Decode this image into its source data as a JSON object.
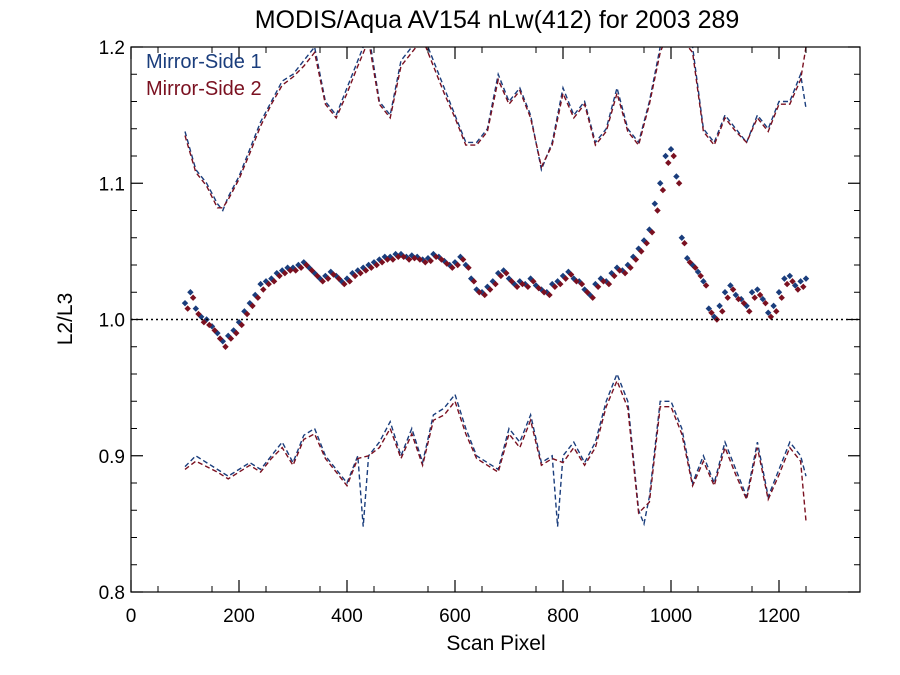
{
  "chart_data": {
    "type": "scatter",
    "title": "MODIS/Aqua AV154 nLw(412) for 2003 289",
    "xlabel": "Scan Pixel",
    "ylabel": "L2/L3",
    "xlim": [
      0,
      1350
    ],
    "ylim": [
      0.8,
      1.2
    ],
    "x_ticks": [
      0,
      200,
      400,
      600,
      800,
      1000,
      1200
    ],
    "x_tick_labels": [
      "0",
      "200",
      "400",
      "600",
      "800",
      "1000",
      "1200"
    ],
    "y_ticks": [
      0.8,
      0.9,
      1.0,
      1.1,
      1.2
    ],
    "y_tick_labels": [
      "0.8",
      "0.9",
      "1.0",
      "1.1",
      "1.2"
    ],
    "reference_line_y": 1.0,
    "grid": false,
    "legend_position": "top-left",
    "colors": {
      "side1": "#1a3d7c",
      "side2": "#7a1020",
      "axis": "#000000"
    },
    "series": [
      {
        "name": "Mirror-Side 1",
        "kind": "points",
        "color": "#1a3d7c",
        "x": [
          100,
          110,
          120,
          130,
          140,
          150,
          160,
          170,
          180,
          190,
          200,
          210,
          220,
          230,
          240,
          250,
          260,
          270,
          280,
          290,
          300,
          310,
          320,
          330,
          340,
          350,
          360,
          370,
          380,
          390,
          400,
          410,
          420,
          430,
          440,
          450,
          460,
          470,
          480,
          490,
          500,
          510,
          520,
          530,
          540,
          550,
          560,
          570,
          580,
          590,
          600,
          610,
          620,
          630,
          640,
          650,
          660,
          670,
          680,
          690,
          700,
          710,
          720,
          730,
          740,
          750,
          760,
          770,
          780,
          790,
          800,
          810,
          820,
          830,
          840,
          850,
          860,
          870,
          880,
          890,
          900,
          910,
          920,
          930,
          940,
          950,
          960,
          970,
          980,
          990,
          1000,
          1010,
          1020,
          1030,
          1040,
          1050,
          1060,
          1070,
          1080,
          1090,
          1100,
          1110,
          1120,
          1130,
          1140,
          1150,
          1160,
          1170,
          1180,
          1190,
          1200,
          1210,
          1220,
          1230,
          1240,
          1250
        ],
        "y": [
          1.012,
          1.02,
          1.008,
          1.002,
          1.0,
          0.995,
          0.99,
          0.984,
          0.988,
          0.992,
          0.998,
          1.006,
          1.012,
          1.018,
          1.026,
          1.028,
          1.03,
          1.034,
          1.036,
          1.038,
          1.038,
          1.04,
          1.042,
          1.038,
          1.034,
          1.03,
          1.032,
          1.035,
          1.032,
          1.028,
          1.03,
          1.034,
          1.036,
          1.038,
          1.04,
          1.042,
          1.044,
          1.046,
          1.046,
          1.048,
          1.048,
          1.046,
          1.047,
          1.046,
          1.044,
          1.045,
          1.048,
          1.046,
          1.043,
          1.04,
          1.042,
          1.046,
          1.04,
          1.03,
          1.022,
          1.02,
          1.024,
          1.028,
          1.034,
          1.036,
          1.03,
          1.026,
          1.028,
          1.026,
          1.03,
          1.025,
          1.022,
          1.02,
          1.026,
          1.028,
          1.032,
          1.035,
          1.03,
          1.028,
          1.022,
          1.018,
          1.026,
          1.03,
          1.028,
          1.034,
          1.038,
          1.036,
          1.04,
          1.046,
          1.052,
          1.058,
          1.066,
          1.085,
          1.1,
          1.12,
          1.125,
          1.105,
          1.06,
          1.045,
          1.04,
          1.035,
          1.028,
          1.008,
          1.002,
          1.01,
          1.02,
          1.025,
          1.018,
          1.015,
          1.01,
          1.02,
          1.022,
          1.015,
          1.005,
          1.01,
          1.02,
          1.03,
          1.032,
          1.025,
          1.028,
          1.03
        ]
      },
      {
        "name": "Mirror-Side 2",
        "kind": "points",
        "color": "#7a1020",
        "x": [
          105,
          115,
          125,
          135,
          145,
          155,
          165,
          175,
          185,
          195,
          205,
          215,
          225,
          235,
          245,
          255,
          265,
          275,
          285,
          295,
          305,
          315,
          325,
          335,
          345,
          355,
          365,
          375,
          385,
          395,
          405,
          415,
          425,
          435,
          445,
          455,
          465,
          475,
          485,
          495,
          505,
          515,
          525,
          535,
          545,
          555,
          565,
          575,
          585,
          595,
          605,
          615,
          625,
          635,
          645,
          655,
          665,
          675,
          685,
          695,
          705,
          715,
          725,
          735,
          745,
          755,
          765,
          775,
          785,
          795,
          805,
          815,
          825,
          835,
          845,
          855,
          865,
          875,
          885,
          895,
          905,
          915,
          925,
          935,
          945,
          955,
          965,
          975,
          985,
          995,
          1005,
          1015,
          1025,
          1035,
          1045,
          1055,
          1065,
          1075,
          1085,
          1095,
          1105,
          1115,
          1125,
          1135,
          1145,
          1155,
          1165,
          1175,
          1185,
          1195,
          1205,
          1215,
          1225,
          1235,
          1245
        ],
        "y": [
          1.008,
          1.016,
          1.004,
          0.998,
          0.996,
          0.992,
          0.986,
          0.98,
          0.986,
          0.99,
          0.996,
          1.004,
          1.01,
          1.016,
          1.022,
          1.026,
          1.028,
          1.032,
          1.034,
          1.036,
          1.036,
          1.038,
          1.04,
          1.036,
          1.032,
          1.028,
          1.03,
          1.033,
          1.03,
          1.026,
          1.028,
          1.032,
          1.034,
          1.036,
          1.038,
          1.04,
          1.042,
          1.044,
          1.044,
          1.046,
          1.046,
          1.044,
          1.045,
          1.044,
          1.042,
          1.043,
          1.046,
          1.044,
          1.041,
          1.038,
          1.04,
          1.044,
          1.038,
          1.028,
          1.02,
          1.018,
          1.022,
          1.026,
          1.032,
          1.034,
          1.028,
          1.024,
          1.026,
          1.024,
          1.028,
          1.023,
          1.02,
          1.018,
          1.024,
          1.026,
          1.03,
          1.033,
          1.028,
          1.026,
          1.02,
          1.016,
          1.024,
          1.028,
          1.026,
          1.032,
          1.036,
          1.034,
          1.038,
          1.044,
          1.05,
          1.056,
          1.064,
          1.08,
          1.095,
          1.115,
          1.12,
          1.1,
          1.056,
          1.042,
          1.038,
          1.032,
          1.025,
          1.005,
          1.0,
          1.006,
          1.016,
          1.022,
          1.015,
          1.012,
          1.006,
          1.016,
          1.018,
          1.012,
          1.002,
          1.006,
          1.016,
          1.026,
          1.028,
          1.022,
          1.024
        ]
      },
      {
        "name": "",
        "kind": "dashed-upper",
        "color": "#1a3d7c",
        "x": [
          100,
          120,
          140,
          160,
          170,
          180,
          200,
          220,
          240,
          260,
          280,
          300,
          320,
          340,
          360,
          380,
          400,
          420,
          440,
          460,
          480,
          500,
          520,
          540,
          560,
          580,
          600,
          620,
          640,
          660,
          680,
          700,
          720,
          740,
          760,
          780,
          800,
          820,
          840,
          860,
          880,
          900,
          920,
          940,
          960,
          980,
          1000,
          1020,
          1040,
          1060,
          1080,
          1100,
          1120,
          1140,
          1160,
          1180,
          1200,
          1220,
          1240,
          1250
        ],
        "y": [
          1.138,
          1.11,
          1.1,
          1.085,
          1.08,
          1.09,
          1.105,
          1.125,
          1.145,
          1.16,
          1.175,
          1.18,
          1.19,
          1.2,
          1.16,
          1.15,
          1.17,
          1.19,
          1.21,
          1.16,
          1.15,
          1.19,
          1.2,
          1.21,
          1.19,
          1.17,
          1.15,
          1.13,
          1.13,
          1.14,
          1.18,
          1.16,
          1.17,
          1.15,
          1.11,
          1.13,
          1.17,
          1.15,
          1.16,
          1.13,
          1.14,
          1.17,
          1.14,
          1.13,
          1.16,
          1.2,
          1.22,
          1.21,
          1.2,
          1.14,
          1.13,
          1.15,
          1.14,
          1.13,
          1.15,
          1.14,
          1.16,
          1.16,
          1.18,
          1.155
        ]
      },
      {
        "name": "",
        "kind": "dashed-upper",
        "color": "#7a1020",
        "x": [
          100,
          120,
          140,
          160,
          170,
          180,
          200,
          220,
          240,
          260,
          280,
          300,
          320,
          340,
          360,
          380,
          400,
          420,
          440,
          460,
          480,
          500,
          520,
          540,
          560,
          580,
          600,
          620,
          640,
          660,
          680,
          700,
          720,
          740,
          760,
          780,
          800,
          820,
          840,
          860,
          880,
          900,
          920,
          940,
          960,
          980,
          1000,
          1020,
          1040,
          1060,
          1080,
          1100,
          1120,
          1140,
          1160,
          1180,
          1200,
          1220,
          1240,
          1250
        ],
        "y": [
          1.135,
          1.108,
          1.098,
          1.082,
          1.082,
          1.088,
          1.103,
          1.122,
          1.142,
          1.158,
          1.172,
          1.178,
          1.186,
          1.196,
          1.158,
          1.148,
          1.166,
          1.186,
          1.205,
          1.158,
          1.148,
          1.186,
          1.196,
          1.206,
          1.186,
          1.166,
          1.148,
          1.128,
          1.128,
          1.138,
          1.176,
          1.158,
          1.168,
          1.148,
          1.112,
          1.128,
          1.166,
          1.148,
          1.158,
          1.128,
          1.138,
          1.166,
          1.138,
          1.128,
          1.158,
          1.196,
          1.216,
          1.206,
          1.196,
          1.138,
          1.128,
          1.148,
          1.138,
          1.13,
          1.148,
          1.138,
          1.158,
          1.158,
          1.176,
          1.2
        ]
      },
      {
        "name": "",
        "kind": "dashed-lower",
        "color": "#1a3d7c",
        "x": [
          100,
          120,
          140,
          160,
          180,
          200,
          220,
          240,
          260,
          280,
          300,
          320,
          340,
          360,
          380,
          400,
          420,
          430,
          440,
          460,
          480,
          500,
          520,
          540,
          560,
          580,
          600,
          620,
          640,
          660,
          680,
          700,
          720,
          740,
          760,
          780,
          790,
          800,
          820,
          840,
          860,
          880,
          900,
          920,
          940,
          950,
          960,
          980,
          1000,
          1020,
          1040,
          1060,
          1080,
          1100,
          1120,
          1140,
          1160,
          1180,
          1200,
          1220,
          1240,
          1250
        ],
        "y": [
          0.892,
          0.9,
          0.895,
          0.89,
          0.885,
          0.89,
          0.895,
          0.89,
          0.9,
          0.91,
          0.895,
          0.915,
          0.92,
          0.9,
          0.89,
          0.88,
          0.9,
          0.848,
          0.9,
          0.91,
          0.925,
          0.9,
          0.92,
          0.895,
          0.93,
          0.935,
          0.945,
          0.92,
          0.9,
          0.895,
          0.89,
          0.92,
          0.91,
          0.93,
          0.895,
          0.9,
          0.848,
          0.9,
          0.91,
          0.895,
          0.91,
          0.94,
          0.96,
          0.94,
          0.86,
          0.85,
          0.87,
          0.94,
          0.94,
          0.92,
          0.88,
          0.9,
          0.88,
          0.91,
          0.89,
          0.87,
          0.91,
          0.87,
          0.89,
          0.91,
          0.9,
          0.885
        ]
      },
      {
        "name": "",
        "kind": "dashed-lower",
        "color": "#7a1020",
        "x": [
          100,
          120,
          140,
          160,
          180,
          200,
          220,
          240,
          260,
          280,
          300,
          320,
          340,
          360,
          380,
          400,
          420,
          440,
          460,
          480,
          500,
          520,
          540,
          560,
          580,
          600,
          620,
          640,
          660,
          680,
          700,
          720,
          740,
          760,
          780,
          800,
          820,
          840,
          860,
          880,
          900,
          920,
          940,
          960,
          980,
          1000,
          1020,
          1040,
          1060,
          1080,
          1100,
          1120,
          1140,
          1160,
          1180,
          1200,
          1220,
          1240,
          1250
        ],
        "y": [
          0.89,
          0.896,
          0.892,
          0.888,
          0.883,
          0.888,
          0.893,
          0.888,
          0.898,
          0.906,
          0.893,
          0.912,
          0.916,
          0.898,
          0.888,
          0.878,
          0.898,
          0.9,
          0.906,
          0.92,
          0.898,
          0.916,
          0.893,
          0.926,
          0.93,
          0.94,
          0.916,
          0.898,
          0.893,
          0.888,
          0.916,
          0.906,
          0.926,
          0.893,
          0.898,
          0.895,
          0.906,
          0.893,
          0.906,
          0.936,
          0.955,
          0.935,
          0.858,
          0.866,
          0.936,
          0.936,
          0.916,
          0.878,
          0.896,
          0.878,
          0.906,
          0.886,
          0.868,
          0.906,
          0.868,
          0.886,
          0.906,
          0.896,
          0.852
        ]
      }
    ]
  }
}
